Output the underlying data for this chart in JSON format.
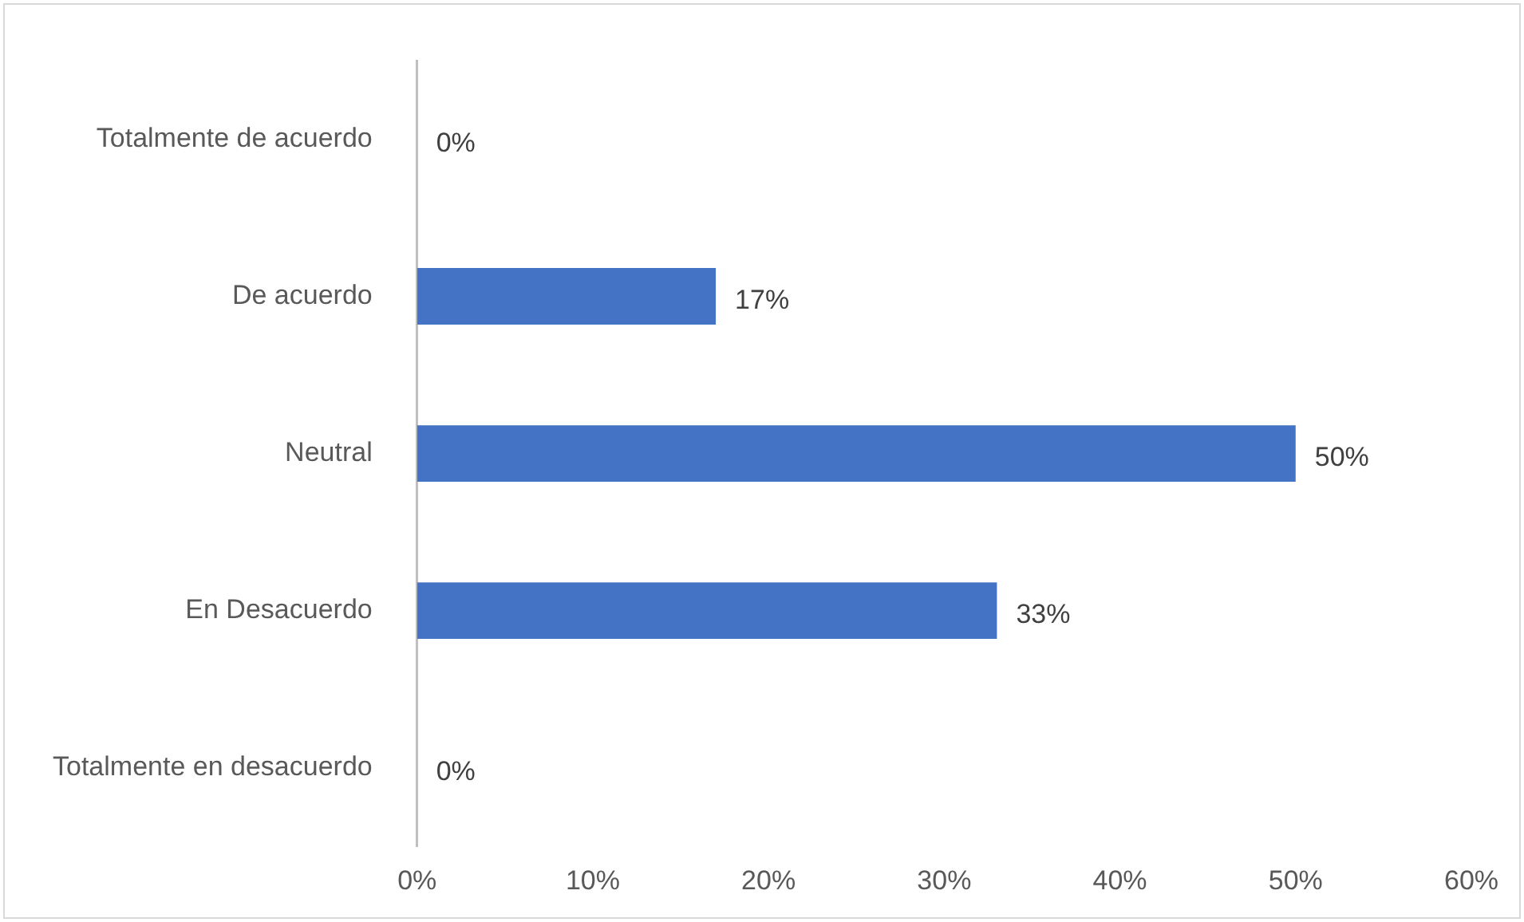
{
  "chart_data": {
    "type": "bar",
    "orientation": "horizontal",
    "categories": [
      "Totalmente de acuerdo",
      "De acuerdo",
      "Neutral",
      "En Desacuerdo",
      "Totalmente en desacuerdo"
    ],
    "values": [
      0,
      17,
      50,
      33,
      0
    ],
    "value_labels": [
      "0%",
      "17%",
      "50%",
      "33%",
      "0%"
    ],
    "color": "#4472c4",
    "xlim": [
      0,
      60
    ],
    "xticks": [
      {
        "value": 0,
        "label": "0%"
      },
      {
        "value": 10,
        "label": "10%"
      },
      {
        "value": 20,
        "label": "20%"
      },
      {
        "value": 30,
        "label": "30%"
      },
      {
        "value": 40,
        "label": "40%"
      },
      {
        "value": 50,
        "label": "50%"
      },
      {
        "value": 60,
        "label": "60%"
      }
    ],
    "grid": false,
    "legend": false
  }
}
